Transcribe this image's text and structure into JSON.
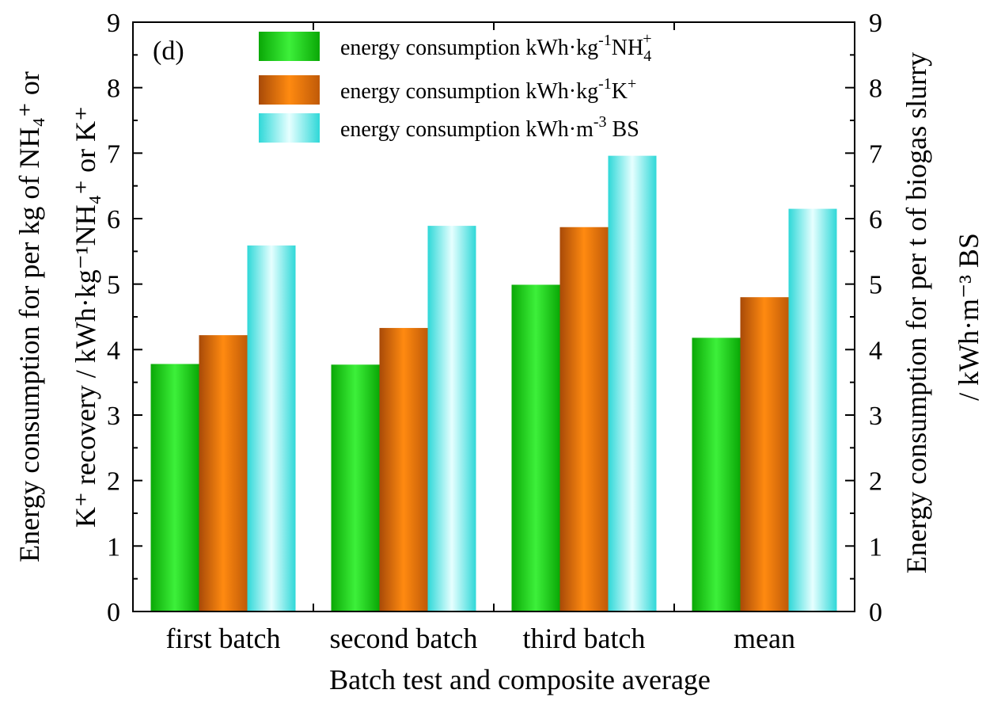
{
  "chart_data": {
    "type": "bar",
    "panel_label": "(d)",
    "categories": [
      "first batch",
      "second batch",
      "third batch",
      "mean"
    ],
    "series": [
      {
        "name": "energy consumption kWh·kg⁻¹NH₄⁺",
        "legend_parts": {
          "main": "energy consumption kWh·kg",
          "sup1": "-1",
          "unit": "NH",
          "sub": "4",
          "sup2": "+"
        },
        "color": "#17c90f",
        "gradient": [
          "#0aa806",
          "#3df03a",
          "#0aa806"
        ],
        "axis": "left",
        "values": [
          3.78,
          3.77,
          4.99,
          4.18
        ]
      },
      {
        "name": "energy consumption kWh·kg⁻¹K⁺",
        "legend_parts": {
          "main": "energy consumption kWh·kg",
          "sup1": "-1",
          "unit": "K",
          "sup2": "+"
        },
        "color": "#ff7f00",
        "gradient": [
          "#a84a08",
          "#ff8a10",
          "#c05a08"
        ],
        "axis": "left",
        "values": [
          4.22,
          4.33,
          5.87,
          4.8
        ]
      },
      {
        "name": "energy consumption kWh·m⁻³ BS",
        "legend_parts": {
          "main": "energy consumption kWh·m",
          "sup1": "-3",
          "unit": " BS"
        },
        "color": "#2ee0e0",
        "gradient": [
          "#2fd8d8",
          "#e6ffff",
          "#2fd8d8"
        ],
        "axis": "right",
        "values": [
          5.59,
          5.89,
          6.96,
          6.15
        ]
      }
    ],
    "xlabel": "Batch test and composite average",
    "ylabel_left_line1": "Energy consumption for per kg of NH₄⁺ or",
    "ylabel_left_line2": "K⁺ recovery / kWh·kg⁻¹NH₄⁺ or K⁺",
    "ylabel_right_line1": "Energy consumption for per t of biogas slurry",
    "ylabel_right_line2": "/ kWh·m⁻³ BS",
    "ylim_left": [
      0,
      9
    ],
    "ylim_right": [
      0,
      9
    ],
    "yticks": [
      0,
      1,
      2,
      3,
      4,
      5,
      6,
      7,
      8,
      9
    ],
    "grid": false,
    "legend_position": "top-center"
  }
}
